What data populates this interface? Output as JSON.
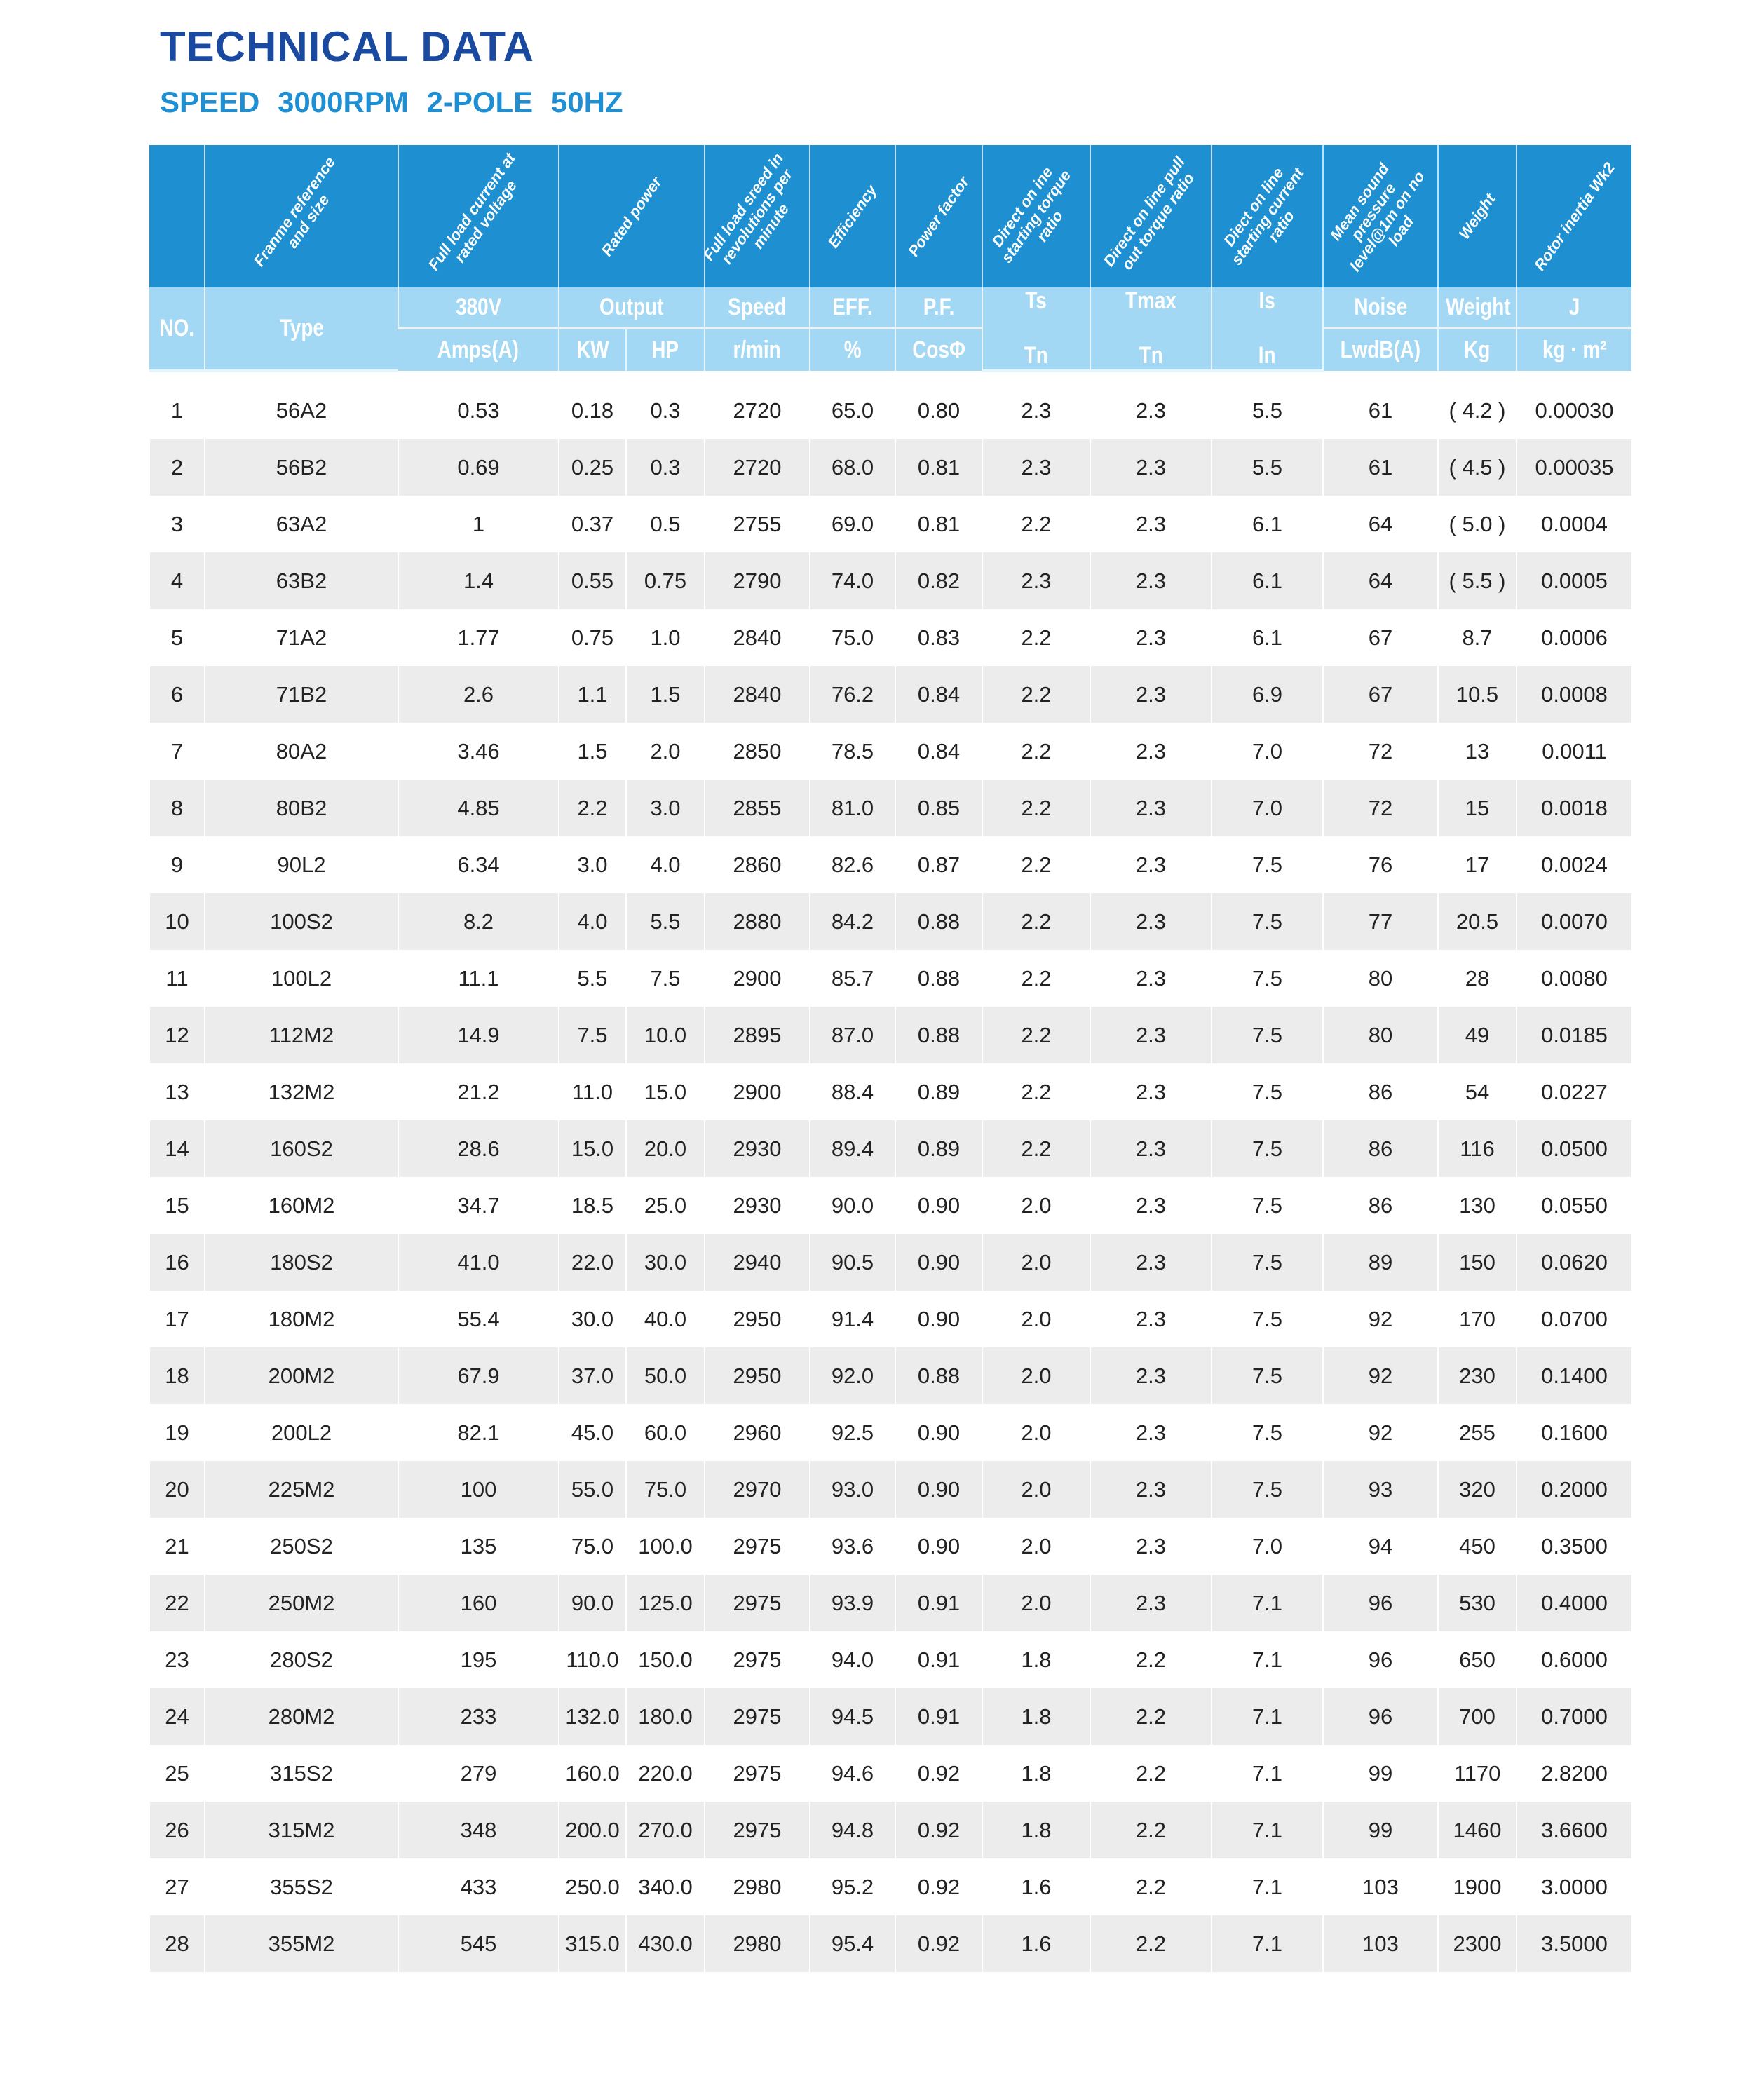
{
  "title": "TECHNICAL DATA",
  "subtitle": "SPEED 3000RPM 2-POLE 50HZ",
  "colors": {
    "title": "#1a4aa0",
    "subtitle": "#1f8fd4",
    "header_dark": "#1e90d2",
    "header_light": "#a3d8f4",
    "row_alt": "#ececec"
  },
  "header": {
    "descriptions": [
      "",
      "Franme reference and size",
      "Full load current at rated voltage",
      "Rated power",
      "Full load sreed in revolutions per minute",
      "Efficiency",
      "Power factor",
      "Direct on ine starting torque ratio",
      "Direct on line pull out torque ratio",
      "Diect on line starting current ratio",
      "Mean sound pressure level@1m on no load",
      "Weight",
      "Rotor inertia Wk2"
    ],
    "no": "NO.",
    "type": "Type",
    "row1": [
      "380V",
      "Output",
      "Speed",
      "EFF.",
      "P.F.",
      "Ts",
      "Tmax",
      "Is",
      "Noise",
      "Weight",
      "J"
    ],
    "row2": [
      "Amps(A)",
      "KW",
      "HP",
      "r/min",
      "%",
      "CosΦ",
      "Tn",
      "Tn",
      "In",
      "LwdB(A)",
      "Kg",
      "kg · m²"
    ]
  },
  "rows": [
    [
      "1",
      "56A2",
      "0.53",
      "0.18",
      "0.3",
      "2720",
      "65.0",
      "0.80",
      "2.3",
      "2.3",
      "5.5",
      "61",
      "( 4.2 )",
      "0.00030"
    ],
    [
      "2",
      "56B2",
      "0.69",
      "0.25",
      "0.3",
      "2720",
      "68.0",
      "0.81",
      "2.3",
      "2.3",
      "5.5",
      "61",
      "( 4.5 )",
      "0.00035"
    ],
    [
      "3",
      "63A2",
      "1",
      "0.37",
      "0.5",
      "2755",
      "69.0",
      "0.81",
      "2.2",
      "2.3",
      "6.1",
      "64",
      "( 5.0 )",
      "0.0004"
    ],
    [
      "4",
      "63B2",
      "1.4",
      "0.55",
      "0.75",
      "2790",
      "74.0",
      "0.82",
      "2.3",
      "2.3",
      "6.1",
      "64",
      "( 5.5 )",
      "0.0005"
    ],
    [
      "5",
      "71A2",
      "1.77",
      "0.75",
      "1.0",
      "2840",
      "75.0",
      "0.83",
      "2.2",
      "2.3",
      "6.1",
      "67",
      "8.7",
      "0.0006"
    ],
    [
      "6",
      "71B2",
      "2.6",
      "1.1",
      "1.5",
      "2840",
      "76.2",
      "0.84",
      "2.2",
      "2.3",
      "6.9",
      "67",
      "10.5",
      "0.0008"
    ],
    [
      "7",
      "80A2",
      "3.46",
      "1.5",
      "2.0",
      "2850",
      "78.5",
      "0.84",
      "2.2",
      "2.3",
      "7.0",
      "72",
      "13",
      "0.0011"
    ],
    [
      "8",
      "80B2",
      "4.85",
      "2.2",
      "3.0",
      "2855",
      "81.0",
      "0.85",
      "2.2",
      "2.3",
      "7.0",
      "72",
      "15",
      "0.0018"
    ],
    [
      "9",
      "90L2",
      "6.34",
      "3.0",
      "4.0",
      "2860",
      "82.6",
      "0.87",
      "2.2",
      "2.3",
      "7.5",
      "76",
      "17",
      "0.0024"
    ],
    [
      "10",
      "100S2",
      "8.2",
      "4.0",
      "5.5",
      "2880",
      "84.2",
      "0.88",
      "2.2",
      "2.3",
      "7.5",
      "77",
      "20.5",
      "0.0070"
    ],
    [
      "11",
      "100L2",
      "11.1",
      "5.5",
      "7.5",
      "2900",
      "85.7",
      "0.88",
      "2.2",
      "2.3",
      "7.5",
      "80",
      "28",
      "0.0080"
    ],
    [
      "12",
      "112M2",
      "14.9",
      "7.5",
      "10.0",
      "2895",
      "87.0",
      "0.88",
      "2.2",
      "2.3",
      "7.5",
      "80",
      "49",
      "0.0185"
    ],
    [
      "13",
      "132M2",
      "21.2",
      "11.0",
      "15.0",
      "2900",
      "88.4",
      "0.89",
      "2.2",
      "2.3",
      "7.5",
      "86",
      "54",
      "0.0227"
    ],
    [
      "14",
      "160S2",
      "28.6",
      "15.0",
      "20.0",
      "2930",
      "89.4",
      "0.89",
      "2.2",
      "2.3",
      "7.5",
      "86",
      "116",
      "0.0500"
    ],
    [
      "15",
      "160M2",
      "34.7",
      "18.5",
      "25.0",
      "2930",
      "90.0",
      "0.90",
      "2.0",
      "2.3",
      "7.5",
      "86",
      "130",
      "0.0550"
    ],
    [
      "16",
      "180S2",
      "41.0",
      "22.0",
      "30.0",
      "2940",
      "90.5",
      "0.90",
      "2.0",
      "2.3",
      "7.5",
      "89",
      "150",
      "0.0620"
    ],
    [
      "17",
      "180M2",
      "55.4",
      "30.0",
      "40.0",
      "2950",
      "91.4",
      "0.90",
      "2.0",
      "2.3",
      "7.5",
      "92",
      "170",
      "0.0700"
    ],
    [
      "18",
      "200M2",
      "67.9",
      "37.0",
      "50.0",
      "2950",
      "92.0",
      "0.88",
      "2.0",
      "2.3",
      "7.5",
      "92",
      "230",
      "0.1400"
    ],
    [
      "19",
      "200L2",
      "82.1",
      "45.0",
      "60.0",
      "2960",
      "92.5",
      "0.90",
      "2.0",
      "2.3",
      "7.5",
      "92",
      "255",
      "0.1600"
    ],
    [
      "20",
      "225M2",
      "100",
      "55.0",
      "75.0",
      "2970",
      "93.0",
      "0.90",
      "2.0",
      "2.3",
      "7.5",
      "93",
      "320",
      "0.2000"
    ],
    [
      "21",
      "250S2",
      "135",
      "75.0",
      "100.0",
      "2975",
      "93.6",
      "0.90",
      "2.0",
      "2.3",
      "7.0",
      "94",
      "450",
      "0.3500"
    ],
    [
      "22",
      "250M2",
      "160",
      "90.0",
      "125.0",
      "2975",
      "93.9",
      "0.91",
      "2.0",
      "2.3",
      "7.1",
      "96",
      "530",
      "0.4000"
    ],
    [
      "23",
      "280S2",
      "195",
      "110.0",
      "150.0",
      "2975",
      "94.0",
      "0.91",
      "1.8",
      "2.2",
      "7.1",
      "96",
      "650",
      "0.6000"
    ],
    [
      "24",
      "280M2",
      "233",
      "132.0",
      "180.0",
      "2975",
      "94.5",
      "0.91",
      "1.8",
      "2.2",
      "7.1",
      "96",
      "700",
      "0.7000"
    ],
    [
      "25",
      "315S2",
      "279",
      "160.0",
      "220.0",
      "2975",
      "94.6",
      "0.92",
      "1.8",
      "2.2",
      "7.1",
      "99",
      "1170",
      "2.8200"
    ],
    [
      "26",
      "315M2",
      "348",
      "200.0",
      "270.0",
      "2975",
      "94.8",
      "0.92",
      "1.8",
      "2.2",
      "7.1",
      "99",
      "1460",
      "3.6600"
    ],
    [
      "27",
      "355S2",
      "433",
      "250.0",
      "340.0",
      "2980",
      "95.2",
      "0.92",
      "1.6",
      "2.2",
      "7.1",
      "103",
      "1900",
      "3.0000"
    ],
    [
      "28",
      "355M2",
      "545",
      "315.0",
      "430.0",
      "2980",
      "95.4",
      "0.92",
      "1.6",
      "2.2",
      "7.1",
      "103",
      "2300",
      "3.5000"
    ]
  ]
}
